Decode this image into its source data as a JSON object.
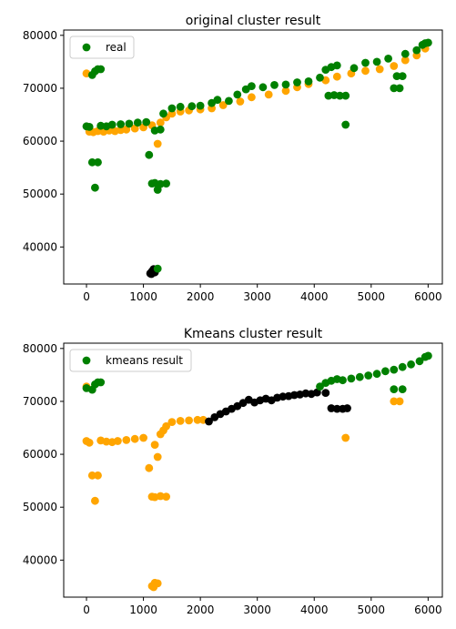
{
  "colors": {
    "green": "#008000",
    "orange": "#ffa500",
    "black": "#000000",
    "frame": "#000000",
    "legend_border": "#cccccc"
  },
  "chart_data": [
    {
      "type": "scatter",
      "title": "original cluster result",
      "xlabel": "",
      "ylabel": "",
      "xlim": [
        -400,
        6250
      ],
      "ylim": [
        33000,
        81000
      ],
      "xticks": [
        0,
        1000,
        2000,
        3000,
        4000,
        5000,
        6000
      ],
      "yticks": [
        40000,
        50000,
        60000,
        70000,
        80000
      ],
      "grid": false,
      "legend": {
        "position": "top-left",
        "entries": [
          {
            "label": "real",
            "color": "#008000"
          }
        ]
      },
      "clusters": [
        {
          "color": "#000000",
          "points": [
            [
              1120,
              35000
            ],
            [
              1150,
              35400
            ],
            [
              1180,
              35800
            ],
            [
              1200,
              35200
            ],
            [
              1140,
              34900
            ],
            [
              1170,
              35600
            ]
          ]
        },
        {
          "color": "#ffa500",
          "points": [
            [
              0,
              72800
            ],
            [
              50,
              61800
            ],
            [
              120,
              61700
            ],
            [
              200,
              61900
            ],
            [
              300,
              61800
            ],
            [
              400,
              62000
            ],
            [
              500,
              61900
            ],
            [
              600,
              62100
            ],
            [
              700,
              62200
            ],
            [
              850,
              62400
            ],
            [
              1000,
              62600
            ],
            [
              1150,
              63000
            ],
            [
              1250,
              59500
            ],
            [
              1300,
              63500
            ],
            [
              1400,
              64500
            ],
            [
              1500,
              65200
            ],
            [
              1650,
              65600
            ],
            [
              1800,
              65800
            ],
            [
              2000,
              66000
            ],
            [
              2200,
              66200
            ],
            [
              2400,
              66800
            ],
            [
              2700,
              67500
            ],
            [
              2900,
              68300
            ],
            [
              3200,
              68800
            ],
            [
              3500,
              69500
            ],
            [
              3700,
              70200
            ],
            [
              3900,
              70800
            ],
            [
              4200,
              71500
            ],
            [
              4400,
              72200
            ],
            [
              4650,
              72800
            ],
            [
              4900,
              73300
            ],
            [
              5150,
              73600
            ],
            [
              5400,
              74200
            ],
            [
              5600,
              75300
            ],
            [
              5800,
              76200
            ],
            [
              5950,
              77500
            ]
          ]
        },
        {
          "color": "#008000",
          "points": [
            [
              0,
              62800
            ],
            [
              50,
              62700
            ],
            [
              100,
              56000
            ],
            [
              150,
              51200
            ],
            [
              200,
              56000
            ],
            [
              100,
              72500
            ],
            [
              150,
              73200
            ],
            [
              200,
              73600
            ],
            [
              250,
              73600
            ],
            [
              250,
              62900
            ],
            [
              350,
              62800
            ],
            [
              450,
              63100
            ],
            [
              600,
              63200
            ],
            [
              750,
              63300
            ],
            [
              900,
              63500
            ],
            [
              1050,
              63600
            ],
            [
              1100,
              57400
            ],
            [
              1150,
              52000
            ],
            [
              1200,
              52100
            ],
            [
              1250,
              50800
            ],
            [
              1300,
              51900
            ],
            [
              1400,
              52000
            ],
            [
              1200,
              62000
            ],
            [
              1300,
              62200
            ],
            [
              1250,
              35900
            ],
            [
              1350,
              65200
            ],
            [
              1500,
              66200
            ],
            [
              1650,
              66500
            ],
            [
              1850,
              66600
            ],
            [
              2000,
              66700
            ],
            [
              2200,
              67200
            ],
            [
              2300,
              67800
            ],
            [
              2500,
              67600
            ],
            [
              2650,
              68800
            ],
            [
              2800,
              69800
            ],
            [
              2900,
              70400
            ],
            [
              3100,
              70200
            ],
            [
              3300,
              70600
            ],
            [
              3500,
              70700
            ],
            [
              3700,
              71100
            ],
            [
              3900,
              71300
            ],
            [
              4100,
              72000
            ],
            [
              4200,
              73500
            ],
            [
              4300,
              74000
            ],
            [
              4400,
              74300
            ],
            [
              4250,
              68600
            ],
            [
              4350,
              68700
            ],
            [
              4450,
              68600
            ],
            [
              4550,
              68600
            ],
            [
              4550,
              63100
            ],
            [
              4700,
              73800
            ],
            [
              4900,
              74800
            ],
            [
              5100,
              75000
            ],
            [
              5300,
              75600
            ],
            [
              5400,
              70000
            ],
            [
              5450,
              72300
            ],
            [
              5500,
              70000
            ],
            [
              5550,
              72300
            ],
            [
              5600,
              76500
            ],
            [
              5800,
              77200
            ],
            [
              5900,
              78200
            ],
            [
              5950,
              78500
            ],
            [
              6000,
              78600
            ]
          ]
        }
      ]
    },
    {
      "type": "scatter",
      "title": "Kmeans cluster result",
      "xlabel": "",
      "ylabel": "",
      "xlim": [
        -400,
        6250
      ],
      "ylim": [
        33000,
        81000
      ],
      "xticks": [
        0,
        1000,
        2000,
        3000,
        4000,
        5000,
        6000
      ],
      "yticks": [
        40000,
        50000,
        60000,
        70000,
        80000
      ],
      "grid": false,
      "legend": {
        "position": "top-left",
        "entries": [
          {
            "label": "kmeans result",
            "color": "#008000"
          }
        ]
      },
      "clusters": [
        {
          "color": "#ffa500",
          "points": [
            [
              0,
              62500
            ],
            [
              50,
              62200
            ],
            [
              100,
              56000
            ],
            [
              150,
              51200
            ],
            [
              200,
              56000
            ],
            [
              250,
              62600
            ],
            [
              350,
              62400
            ],
            [
              450,
              62300
            ],
            [
              550,
              62500
            ],
            [
              700,
              62700
            ],
            [
              850,
              62900
            ],
            [
              1000,
              63100
            ],
            [
              1100,
              57400
            ],
            [
              1150,
              52000
            ],
            [
              1200,
              51900
            ],
            [
              1300,
              52100
            ],
            [
              1400,
              52000
            ],
            [
              1150,
              35100
            ],
            [
              1200,
              35700
            ],
            [
              1250,
              35600
            ],
            [
              1180,
              34900
            ],
            [
              1250,
              59500
            ],
            [
              1200,
              61800
            ],
            [
              1300,
              63800
            ],
            [
              1350,
              64500
            ],
            [
              1400,
              65300
            ],
            [
              1500,
              66100
            ],
            [
              1650,
              66300
            ],
            [
              1800,
              66400
            ],
            [
              1950,
              66500
            ],
            [
              2050,
              66500
            ],
            [
              4550,
              63100
            ],
            [
              5400,
              70000
            ],
            [
              5500,
              70000
            ],
            [
              0,
              72800
            ]
          ]
        },
        {
          "color": "#000000",
          "points": [
            [
              2150,
              66200
            ],
            [
              2250,
              67000
            ],
            [
              2350,
              67600
            ],
            [
              2450,
              68100
            ],
            [
              2550,
              68600
            ],
            [
              2650,
              69100
            ],
            [
              2750,
              69700
            ],
            [
              2850,
              70300
            ],
            [
              2950,
              69800
            ],
            [
              3050,
              70200
            ],
            [
              3150,
              70500
            ],
            [
              3250,
              70200
            ],
            [
              3350,
              70700
            ],
            [
              3450,
              70900
            ],
            [
              3550,
              71000
            ],
            [
              3650,
              71200
            ],
            [
              3750,
              71300
            ],
            [
              3850,
              71500
            ],
            [
              3950,
              71400
            ],
            [
              4050,
              71700
            ],
            [
              4200,
              71600
            ],
            [
              4300,
              68700
            ],
            [
              4400,
              68600
            ],
            [
              4500,
              68600
            ],
            [
              4580,
              68700
            ]
          ]
        },
        {
          "color": "#008000",
          "points": [
            [
              0,
              72500
            ],
            [
              100,
              72200
            ],
            [
              150,
              73200
            ],
            [
              200,
              73600
            ],
            [
              250,
              73600
            ],
            [
              4100,
              72800
            ],
            [
              4200,
              73500
            ],
            [
              4300,
              73900
            ],
            [
              4400,
              74200
            ],
            [
              4500,
              74000
            ],
            [
              4650,
              74300
            ],
            [
              4800,
              74600
            ],
            [
              4950,
              74900
            ],
            [
              5100,
              75200
            ],
            [
              5250,
              75700
            ],
            [
              5400,
              72300
            ],
            [
              5550,
              72300
            ],
            [
              5400,
              76000
            ],
            [
              5550,
              76500
            ],
            [
              5700,
              77000
            ],
            [
              5850,
              77600
            ],
            [
              5950,
              78400
            ],
            [
              6000,
              78600
            ]
          ]
        }
      ]
    }
  ]
}
